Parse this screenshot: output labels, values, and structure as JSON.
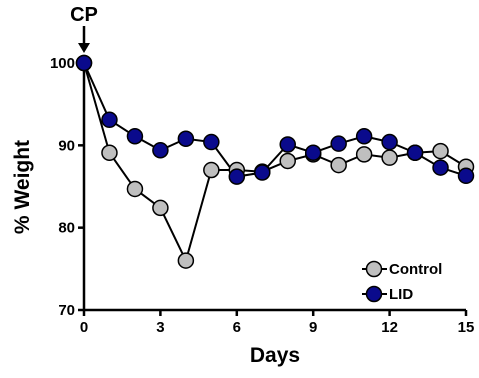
{
  "chart_data": {
    "type": "line",
    "xlabel": "Days",
    "ylabel": "% Weight",
    "xlim": [
      0,
      15
    ],
    "ylim": [
      70,
      100
    ],
    "xticks": [
      0,
      3,
      6,
      9,
      12,
      15
    ],
    "yticks": [
      70,
      80,
      90,
      100
    ],
    "grid": false,
    "legend_position": "bottom-right",
    "annotation": {
      "text": "CP",
      "x": 0
    },
    "series": [
      {
        "name": "Control",
        "color": "#bfbfbf",
        "x": [
          0,
          1,
          2,
          3,
          4,
          5,
          6,
          7,
          8,
          9,
          10,
          11,
          12,
          13,
          14,
          15
        ],
        "y": [
          100,
          89.1,
          84.7,
          82.4,
          76.0,
          87.0,
          87.0,
          86.8,
          88.1,
          88.9,
          87.6,
          88.9,
          88.5,
          89.1,
          89.3,
          87.4
        ]
      },
      {
        "name": "LID",
        "color": "#0a0a8c",
        "x": [
          0,
          1,
          2,
          3,
          4,
          5,
          6,
          7,
          8,
          9,
          10,
          11,
          12,
          13,
          14,
          15
        ],
        "y": [
          100,
          93.1,
          91.1,
          89.4,
          90.8,
          90.4,
          86.2,
          86.7,
          90.1,
          89.1,
          90.2,
          91.1,
          90.4,
          89.1,
          87.3,
          86.3
        ]
      }
    ]
  }
}
